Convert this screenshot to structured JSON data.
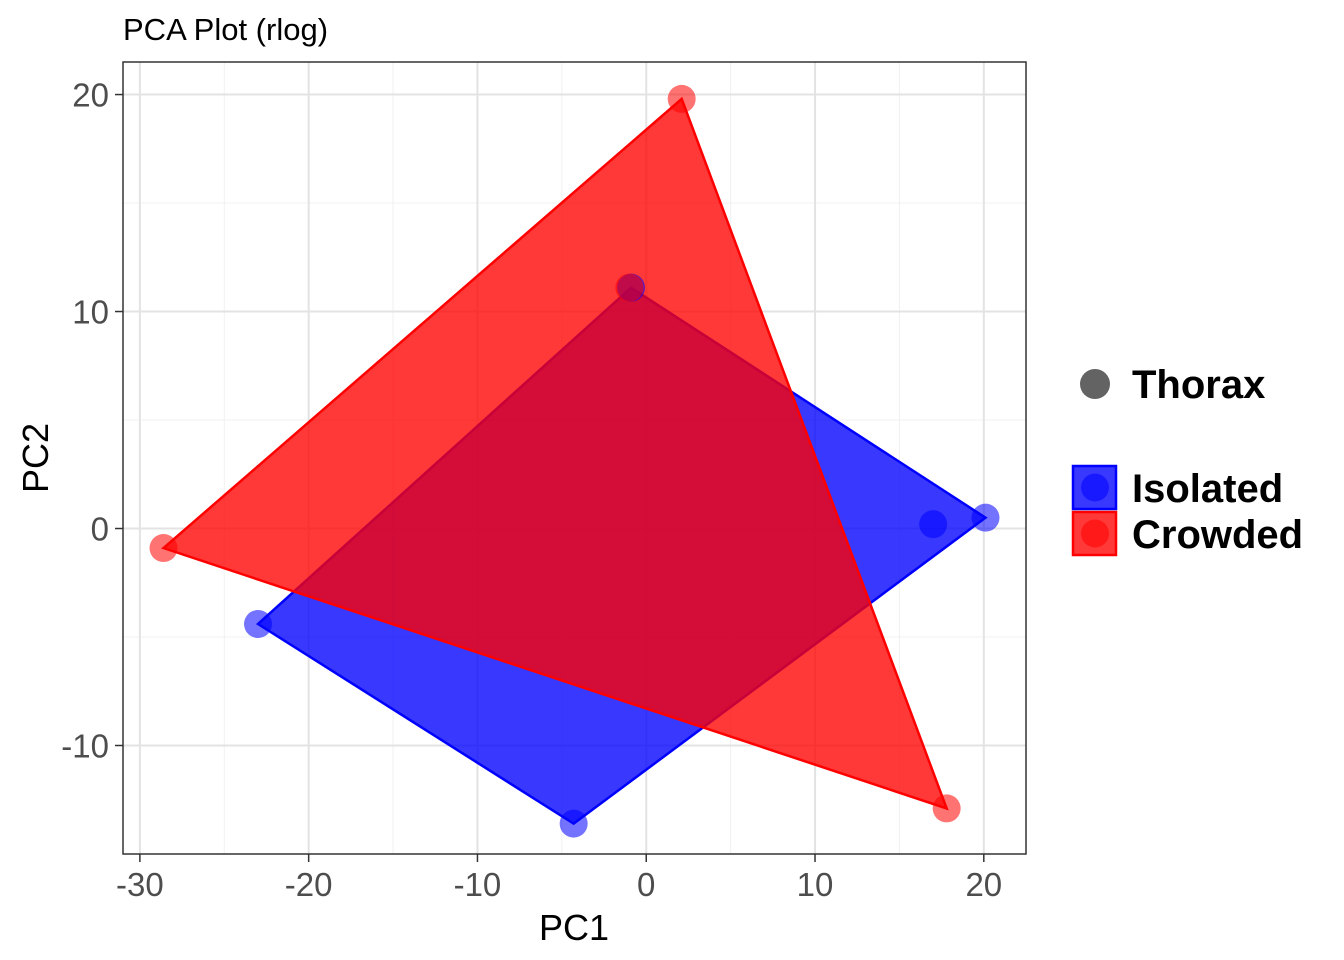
{
  "chart_data": {
    "type": "scatter",
    "title": "PCA Plot (rlog)",
    "xlabel": "PC1",
    "ylabel": "PC2",
    "xlim": [
      -31,
      22.5
    ],
    "ylim": [
      -15,
      21.5
    ],
    "x_ticks": [
      -30,
      -20,
      -10,
      0,
      10,
      20
    ],
    "y_ticks": [
      -10,
      0,
      10,
      20
    ],
    "x_tick_labels": [
      "-30",
      "-20",
      "-10",
      "0",
      "10",
      "20"
    ],
    "y_tick_labels": [
      "-10",
      "0",
      "10",
      "20"
    ],
    "grid": true,
    "legend_position": "right",
    "shape_legend": {
      "label": "Thorax",
      "color": "#636363"
    },
    "series": [
      {
        "name": "Isolated",
        "color": "#0000ff",
        "points": [
          {
            "x": -23.0,
            "y": -4.4
          },
          {
            "x": -4.3,
            "y": -13.6
          },
          {
            "x": 17.0,
            "y": 0.2
          },
          {
            "x": 20.1,
            "y": 0.5
          },
          {
            "x": -0.9,
            "y": 11.1
          }
        ],
        "hull": [
          [
            -23.0,
            -4.4
          ],
          [
            -4.3,
            -13.6
          ],
          [
            20.1,
            0.5
          ],
          [
            -0.9,
            11.1
          ]
        ]
      },
      {
        "name": "Crowded",
        "color": "#ff0000",
        "points": [
          {
            "x": -28.6,
            "y": -0.9
          },
          {
            "x": 2.1,
            "y": 19.8
          },
          {
            "x": -1.0,
            "y": 11.1
          },
          {
            "x": 17.8,
            "y": -12.9
          }
        ],
        "hull": [
          [
            -28.6,
            -0.9
          ],
          [
            2.1,
            19.8
          ],
          [
            17.8,
            -12.9
          ]
        ]
      }
    ]
  }
}
